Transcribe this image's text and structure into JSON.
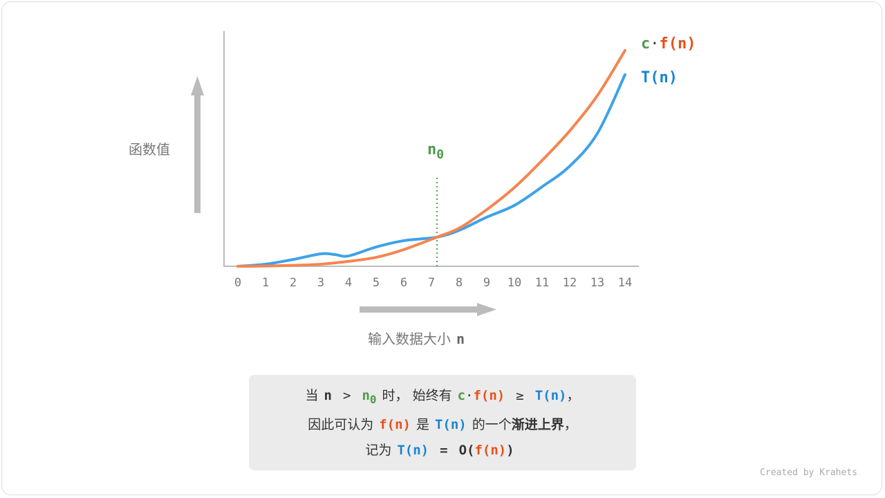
{
  "chart_data": {
    "type": "line",
    "x_ticks": [
      "0",
      "1",
      "2",
      "3",
      "4",
      "5",
      "6",
      "7",
      "8",
      "9",
      "10",
      "11",
      "12",
      "13",
      "14"
    ],
    "xlim": [
      0,
      14
    ],
    "ylabel": "函数值",
    "xlabel": "输入数据大小",
    "xlabel_var": "n",
    "grid": false,
    "series": [
      {
        "name": "c·f(n)",
        "color": "#f5854f",
        "x": [
          0,
          1,
          2,
          3,
          4,
          5,
          6,
          7.2,
          8,
          9,
          10,
          11,
          12,
          13,
          14
        ],
        "y": [
          0,
          0.1,
          0.4,
          0.9,
          2.1,
          3.8,
          7.1,
          12.4,
          16.2,
          24.1,
          33.5,
          45,
          57.6,
          72.6,
          91.8
        ]
      },
      {
        "name": "T(n)",
        "color": "#3ea2e8",
        "x": [
          0,
          1,
          2,
          3,
          3.5,
          4,
          5,
          6,
          7.2,
          8,
          9,
          10,
          11,
          12,
          13,
          14
        ],
        "y": [
          0,
          0.9,
          2.9,
          5.3,
          5.0,
          4.4,
          8.2,
          10.9,
          12.4,
          15.3,
          20.9,
          25.9,
          33.8,
          42.6,
          56.5,
          81.5
        ]
      }
    ],
    "annotation": {
      "label": "n",
      "sub": "0",
      "x": 7.2
    }
  },
  "legend": {
    "c": "c",
    "dot": "·",
    "f": "f(n)",
    "t": "T(n)"
  },
  "note": {
    "l1": [
      "当",
      "n",
      ">",
      "n",
      "0",
      "时，  始终有",
      "c",
      "·",
      "f(n)",
      "≥",
      "T(n)",
      "，"
    ],
    "l2": [
      "因此可认为",
      "f(n)",
      "是",
      "T(n)",
      "的一个",
      "渐进上界",
      "，"
    ],
    "l3": [
      "记为",
      "T(n)",
      "=",
      "O(",
      "f(n)",
      ")"
    ]
  },
  "credit": "Created by Krahets",
  "colors": {
    "green": "#4e9a4a",
    "orange": "#e8501a",
    "blue": "#1a84d0",
    "axis": "#bbbbbb"
  }
}
